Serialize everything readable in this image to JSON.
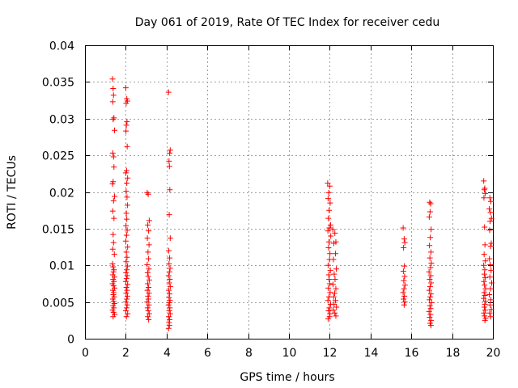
{
  "chart_data": {
    "type": "scatter",
    "title": "Day 061 of 2019, Rate Of TEC Index for receiver cedu",
    "xlabel": "GPS time / hours",
    "ylabel": "ROTI / TECUs",
    "xlim": [
      0,
      20
    ],
    "ylim": [
      0,
      0.04
    ],
    "grid": true,
    "marker": "+",
    "color": "#ff0000",
    "x_ticks": [
      0,
      2,
      4,
      6,
      8,
      10,
      12,
      14,
      16,
      18,
      20
    ],
    "x_tick_labels": [
      "0",
      "2",
      "4",
      "6",
      "8",
      "10",
      "12",
      "14",
      "16",
      "18",
      "20"
    ],
    "y_ticks": [
      0,
      0.005,
      0.01,
      0.015,
      0.02,
      0.025,
      0.03,
      0.035,
      0.04
    ],
    "y_tick_labels": [
      "0",
      "0.005",
      "0.01",
      "0.015",
      "0.02",
      "0.025",
      "0.03",
      "0.035",
      "0.04"
    ],
    "series": [
      {
        "name": "ROTI",
        "points": [
          [
            1.35,
            0.0354
          ],
          [
            1.38,
            0.0341
          ],
          [
            1.4,
            0.0332
          ],
          [
            1.36,
            0.0323
          ],
          [
            1.42,
            0.0301
          ],
          [
            1.38,
            0.0299
          ],
          [
            1.45,
            0.0284
          ],
          [
            1.36,
            0.0253
          ],
          [
            1.4,
            0.0248
          ],
          [
            1.42,
            0.0234
          ],
          [
            1.38,
            0.0214
          ],
          [
            1.35,
            0.0211
          ],
          [
            1.45,
            0.0194
          ],
          [
            1.4,
            0.0188
          ],
          [
            1.36,
            0.0174
          ],
          [
            1.42,
            0.0164
          ],
          [
            1.38,
            0.0142
          ],
          [
            1.4,
            0.0131
          ],
          [
            1.36,
            0.0122
          ],
          [
            1.44,
            0.0115
          ],
          [
            1.35,
            0.0102
          ],
          [
            1.38,
            0.0098
          ],
          [
            1.42,
            0.0094
          ],
          [
            1.4,
            0.0091
          ],
          [
            1.36,
            0.0087
          ],
          [
            1.44,
            0.0084
          ],
          [
            1.38,
            0.0081
          ],
          [
            1.42,
            0.0078
          ],
          [
            1.35,
            0.0075
          ],
          [
            1.4,
            0.0072
          ],
          [
            1.45,
            0.0069
          ],
          [
            1.37,
            0.0066
          ],
          [
            1.41,
            0.0063
          ],
          [
            1.39,
            0.006
          ],
          [
            1.43,
            0.0057
          ],
          [
            1.36,
            0.0054
          ],
          [
            1.4,
            0.0051
          ],
          [
            1.44,
            0.0048
          ],
          [
            1.38,
            0.0045
          ],
          [
            1.42,
            0.0042
          ],
          [
            1.35,
            0.0039
          ],
          [
            1.4,
            0.0036
          ],
          [
            1.45,
            0.0033
          ],
          [
            1.38,
            0.003
          ],
          [
            2.0,
            0.0342
          ],
          [
            2.05,
            0.0327
          ],
          [
            2.08,
            0.0324
          ],
          [
            2.02,
            0.0321
          ],
          [
            2.06,
            0.0296
          ],
          [
            2.03,
            0.0291
          ],
          [
            2.01,
            0.0283
          ],
          [
            2.07,
            0.0262
          ],
          [
            2.04,
            0.0229
          ],
          [
            2.0,
            0.0226
          ],
          [
            2.09,
            0.0219
          ],
          [
            2.05,
            0.0212
          ],
          [
            2.02,
            0.0201
          ],
          [
            2.06,
            0.0193
          ],
          [
            2.08,
            0.0182
          ],
          [
            2.03,
            0.0171
          ],
          [
            2.05,
            0.0163
          ],
          [
            2.01,
            0.0154
          ],
          [
            2.07,
            0.0148
          ],
          [
            2.04,
            0.0141
          ],
          [
            2.0,
            0.0133
          ],
          [
            2.09,
            0.0125
          ],
          [
            2.03,
            0.0118
          ],
          [
            2.06,
            0.0111
          ],
          [
            2.02,
            0.0105
          ],
          [
            2.08,
            0.0099
          ],
          [
            2.05,
            0.0094
          ],
          [
            2.01,
            0.009
          ],
          [
            2.07,
            0.0086
          ],
          [
            2.04,
            0.0082
          ],
          [
            2.0,
            0.0078
          ],
          [
            2.09,
            0.0074
          ],
          [
            2.03,
            0.007
          ],
          [
            2.06,
            0.0066
          ],
          [
            2.02,
            0.0062
          ],
          [
            2.08,
            0.0058
          ],
          [
            2.05,
            0.0054
          ],
          [
            2.01,
            0.005
          ],
          [
            2.07,
            0.0046
          ],
          [
            2.04,
            0.0042
          ],
          [
            2.0,
            0.0038
          ],
          [
            2.09,
            0.0034
          ],
          [
            2.03,
            0.003
          ],
          [
            3.05,
            0.0199
          ],
          [
            3.1,
            0.0197
          ],
          [
            3.15,
            0.0161
          ],
          [
            3.08,
            0.0155
          ],
          [
            3.12,
            0.0147
          ],
          [
            3.06,
            0.0137
          ],
          [
            3.14,
            0.0128
          ],
          [
            3.09,
            0.0118
          ],
          [
            3.11,
            0.0109
          ],
          [
            3.05,
            0.0101
          ],
          [
            3.13,
            0.0095
          ],
          [
            3.07,
            0.009
          ],
          [
            3.1,
            0.0085
          ],
          [
            3.15,
            0.008
          ],
          [
            3.08,
            0.0075
          ],
          [
            3.12,
            0.007
          ],
          [
            3.06,
            0.0066
          ],
          [
            3.14,
            0.0062
          ],
          [
            3.09,
            0.0058
          ],
          [
            3.11,
            0.0054
          ],
          [
            3.05,
            0.005
          ],
          [
            3.13,
            0.0046
          ],
          [
            3.07,
            0.0042
          ],
          [
            3.1,
            0.0038
          ],
          [
            3.15,
            0.0034
          ],
          [
            3.08,
            0.003
          ],
          [
            3.12,
            0.0026
          ],
          [
            4.1,
            0.0336
          ],
          [
            4.18,
            0.0257
          ],
          [
            4.15,
            0.0253
          ],
          [
            4.12,
            0.0242
          ],
          [
            4.14,
            0.0235
          ],
          [
            4.16,
            0.0203
          ],
          [
            4.13,
            0.0169
          ],
          [
            4.18,
            0.0137
          ],
          [
            4.11,
            0.012
          ],
          [
            4.15,
            0.011
          ],
          [
            4.12,
            0.0102
          ],
          [
            4.17,
            0.0096
          ],
          [
            4.14,
            0.0091
          ],
          [
            4.1,
            0.0086
          ],
          [
            4.16,
            0.0081
          ],
          [
            4.13,
            0.0076
          ],
          [
            4.18,
            0.0071
          ],
          [
            4.11,
            0.0066
          ],
          [
            4.15,
            0.0061
          ],
          [
            4.12,
            0.0056
          ],
          [
            4.17,
            0.0052
          ],
          [
            4.14,
            0.0049
          ],
          [
            4.1,
            0.0046
          ],
          [
            4.16,
            0.0042
          ],
          [
            4.13,
            0.0038
          ],
          [
            4.18,
            0.0034
          ],
          [
            4.11,
            0.003
          ],
          [
            4.15,
            0.0026
          ],
          [
            4.12,
            0.0022
          ],
          [
            4.14,
            0.0018
          ],
          [
            4.1,
            0.0014
          ],
          [
            11.9,
            0.0212
          ],
          [
            12.0,
            0.0208
          ],
          [
            11.95,
            0.0199
          ],
          [
            11.92,
            0.0191
          ],
          [
            12.02,
            0.0185
          ],
          [
            11.97,
            0.0175
          ],
          [
            11.93,
            0.0164
          ],
          [
            12.04,
            0.0155
          ],
          [
            11.98,
            0.0151
          ],
          [
            11.91,
            0.0147
          ],
          [
            12.05,
            0.014
          ],
          [
            11.96,
            0.0132
          ],
          [
            11.94,
            0.0124
          ],
          [
            12.01,
            0.0116
          ],
          [
            11.99,
            0.0108
          ],
          [
            11.92,
            0.01
          ],
          [
            12.03,
            0.0093
          ],
          [
            11.95,
            0.0087
          ],
          [
            11.97,
            0.0081
          ],
          [
            12.0,
            0.0075
          ],
          [
            11.93,
            0.0069
          ],
          [
            12.02,
            0.0063
          ],
          [
            11.96,
            0.0057
          ],
          [
            11.91,
            0.0052
          ],
          [
            12.04,
            0.0047
          ],
          [
            11.98,
            0.0042
          ],
          [
            11.94,
            0.0038
          ],
          [
            12.01,
            0.0034
          ],
          [
            11.99,
            0.003
          ],
          [
            11.92,
            0.0027
          ],
          [
            12.15,
            0.0149
          ],
          [
            12.25,
            0.0144
          ],
          [
            12.3,
            0.0132
          ],
          [
            12.2,
            0.013
          ],
          [
            12.28,
            0.0116
          ],
          [
            12.18,
            0.0108
          ],
          [
            12.32,
            0.0095
          ],
          [
            12.22,
            0.0088
          ],
          [
            12.26,
            0.0081
          ],
          [
            12.16,
            0.0074
          ],
          [
            12.3,
            0.0068
          ],
          [
            12.24,
            0.0062
          ],
          [
            12.19,
            0.0057
          ],
          [
            12.28,
            0.0052
          ],
          [
            12.21,
            0.0047
          ],
          [
            12.33,
            0.0043
          ],
          [
            12.17,
            0.0039
          ],
          [
            12.25,
            0.0035
          ],
          [
            12.3,
            0.0031
          ],
          [
            15.6,
            0.0151
          ],
          [
            15.65,
            0.0136
          ],
          [
            15.68,
            0.0131
          ],
          [
            15.62,
            0.0124
          ],
          [
            15.66,
            0.0099
          ],
          [
            15.61,
            0.0092
          ],
          [
            15.67,
            0.0085
          ],
          [
            15.63,
            0.0079
          ],
          [
            15.69,
            0.0073
          ],
          [
            15.64,
            0.0068
          ],
          [
            15.6,
            0.0063
          ],
          [
            15.66,
            0.0058
          ],
          [
            15.62,
            0.0054
          ],
          [
            15.68,
            0.005
          ],
          [
            15.65,
            0.0046
          ],
          [
            16.9,
            0.0186
          ],
          [
            16.95,
            0.0184
          ],
          [
            16.92,
            0.0173
          ],
          [
            16.88,
            0.0166
          ],
          [
            16.97,
            0.0149
          ],
          [
            16.93,
            0.0138
          ],
          [
            16.89,
            0.0127
          ],
          [
            16.96,
            0.0118
          ],
          [
            16.91,
            0.011
          ],
          [
            16.98,
            0.0103
          ],
          [
            16.94,
            0.0097
          ],
          [
            16.87,
            0.0091
          ],
          [
            16.95,
            0.0086
          ],
          [
            16.9,
            0.0081
          ],
          [
            16.97,
            0.0076
          ],
          [
            16.92,
            0.0071
          ],
          [
            16.88,
            0.0066
          ],
          [
            16.96,
            0.0061
          ],
          [
            16.93,
            0.0057
          ],
          [
            16.89,
            0.0053
          ],
          [
            16.99,
            0.0049
          ],
          [
            16.91,
            0.0045
          ],
          [
            16.95,
            0.0041
          ],
          [
            16.87,
            0.0037
          ],
          [
            16.94,
            0.0033
          ],
          [
            16.9,
            0.0029
          ],
          [
            16.97,
            0.0025
          ],
          [
            16.92,
            0.0021
          ],
          [
            16.96,
            0.0018
          ],
          [
            19.55,
            0.0215
          ],
          [
            19.6,
            0.0205
          ],
          [
            19.58,
            0.0203
          ],
          [
            19.62,
            0.0198
          ],
          [
            19.56,
            0.0192
          ],
          [
            19.59,
            0.0152
          ],
          [
            19.61,
            0.0128
          ],
          [
            19.57,
            0.0115
          ],
          [
            19.63,
            0.0106
          ],
          [
            19.55,
            0.01
          ],
          [
            19.6,
            0.0094
          ],
          [
            19.58,
            0.0088
          ],
          [
            19.62,
            0.0083
          ],
          [
            19.56,
            0.0078
          ],
          [
            19.59,
            0.0073
          ],
          [
            19.64,
            0.0068
          ],
          [
            19.57,
            0.0063
          ],
          [
            19.61,
            0.0059
          ],
          [
            19.55,
            0.0055
          ],
          [
            19.63,
            0.0051
          ],
          [
            19.6,
            0.0047
          ],
          [
            19.58,
            0.0043
          ],
          [
            19.62,
            0.0039
          ],
          [
            19.56,
            0.0035
          ],
          [
            19.59,
            0.0031
          ],
          [
            19.64,
            0.0028
          ],
          [
            19.61,
            0.0025
          ],
          [
            19.85,
            0.0192
          ],
          [
            19.9,
            0.0187
          ],
          [
            19.82,
            0.0177
          ],
          [
            19.88,
            0.0172
          ],
          [
            19.93,
            0.0164
          ],
          [
            19.86,
            0.016
          ],
          [
            19.84,
            0.0148
          ],
          [
            19.92,
            0.013
          ],
          [
            19.89,
            0.0126
          ],
          [
            19.83,
            0.0109
          ],
          [
            19.87,
            0.0101
          ],
          [
            19.91,
            0.0093
          ],
          [
            19.85,
            0.0084
          ],
          [
            19.94,
            0.0076
          ],
          [
            19.88,
            0.0068
          ],
          [
            19.82,
            0.006
          ],
          [
            19.9,
            0.0053
          ],
          [
            19.86,
            0.0046
          ],
          [
            19.92,
            0.004
          ],
          [
            19.84,
            0.0035
          ],
          [
            19.89,
            0.003
          ]
        ]
      }
    ]
  }
}
